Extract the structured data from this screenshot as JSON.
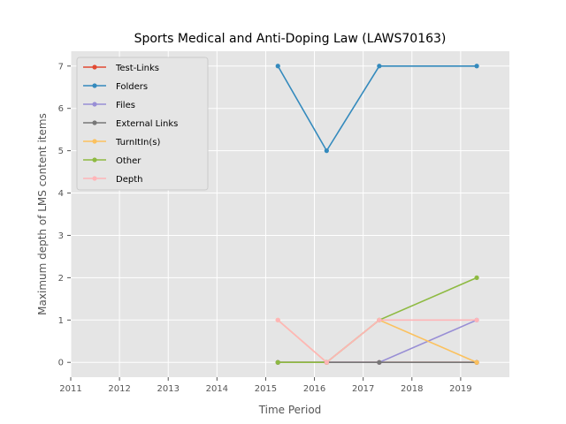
{
  "chart_data": {
    "type": "line",
    "title": "Sports Medical and Anti-Doping Law (LAWS70163)",
    "xlabel": "Time Period",
    "ylabel": "Maximum depth of LMS content items",
    "xlim": [
      2011,
      2020
    ],
    "ylim": [
      -0.35,
      7.35
    ],
    "x_ticks": [
      2011,
      2012,
      2013,
      2014,
      2015,
      2016,
      2017,
      2018,
      2019
    ],
    "y_ticks": [
      0,
      1,
      2,
      3,
      4,
      5,
      6,
      7
    ],
    "grid": true,
    "legend_position": "upper-left",
    "x": [
      2015.25,
      2016.25,
      2017.33,
      2019.33
    ],
    "series": [
      {
        "name": "Test-Links",
        "color": "#e24a33",
        "values": [
          0,
          0,
          0,
          0
        ]
      },
      {
        "name": "Folders",
        "color": "#348abd",
        "values": [
          7,
          5,
          7,
          7
        ]
      },
      {
        "name": "Files",
        "color": "#988ed5",
        "values": [
          0,
          0,
          0,
          1
        ]
      },
      {
        "name": "External Links",
        "color": "#777777",
        "values": [
          0,
          0,
          0,
          0
        ]
      },
      {
        "name": "TurnItIn(s)",
        "color": "#fbc15e",
        "values": [
          1,
          0,
          1,
          0
        ]
      },
      {
        "name": "Other",
        "color": "#8eba42",
        "values": [
          0,
          0,
          1,
          2
        ]
      },
      {
        "name": "Depth",
        "color": "#ffb5b8",
        "values": [
          1,
          0,
          1,
          1
        ]
      }
    ]
  }
}
